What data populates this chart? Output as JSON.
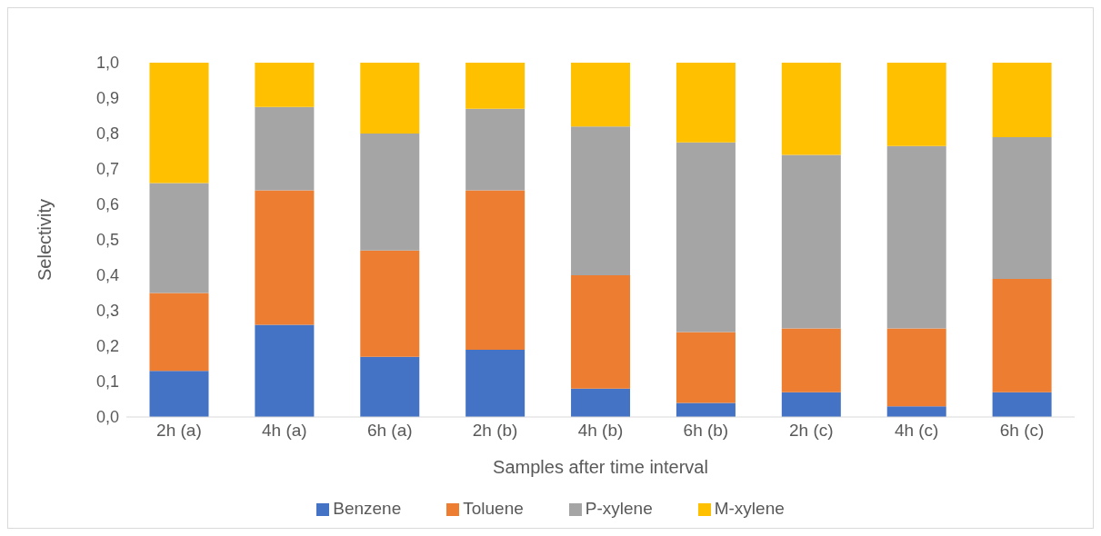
{
  "chart_data": {
    "type": "bar",
    "stacked": true,
    "xlabel": "Samples after time interval",
    "ylabel": "Selectivity",
    "categories": [
      "2h (a)",
      "4h (a)",
      "6h (a)",
      "2h (b)",
      "4h (b)",
      "6h (b)",
      "2h (c)",
      "4h (c)",
      "6h (c)"
    ],
    "series": [
      {
        "name": "Benzene",
        "color": "#4472c4",
        "values": [
          0.13,
          0.26,
          0.17,
          0.19,
          0.08,
          0.04,
          0.07,
          0.03,
          0.07
        ]
      },
      {
        "name": "Toluene",
        "color": "#ed7d31",
        "values": [
          0.22,
          0.38,
          0.3,
          0.45,
          0.32,
          0.2,
          0.18,
          0.22,
          0.32
        ]
      },
      {
        "name": "P-xylene",
        "color": "#a5a5a5",
        "values": [
          0.31,
          0.235,
          0.33,
          0.23,
          0.42,
          0.535,
          0.49,
          0.515,
          0.4
        ]
      },
      {
        "name": "M-xylene",
        "color": "#ffc000",
        "values": [
          0.34,
          0.125,
          0.2,
          0.13,
          0.18,
          0.225,
          0.26,
          0.235,
          0.21
        ]
      }
    ],
    "ylim": [
      0,
      1
    ],
    "yticks": [
      {
        "value": 0,
        "label": "0,0"
      },
      {
        "value": 0.1,
        "label": "0,1"
      },
      {
        "value": 0.2,
        "label": "0,2"
      },
      {
        "value": 0.3,
        "label": "0,3"
      },
      {
        "value": 0.4,
        "label": "0,4"
      },
      {
        "value": 0.5,
        "label": "0,5"
      },
      {
        "value": 0.6,
        "label": "0,6"
      },
      {
        "value": 0.7,
        "label": "0,7"
      },
      {
        "value": 0.8,
        "label": "0,8"
      },
      {
        "value": 0.9,
        "label": "0,9"
      },
      {
        "value": 1,
        "label": "1,0"
      }
    ],
    "grid": false,
    "legend": "bottom"
  }
}
